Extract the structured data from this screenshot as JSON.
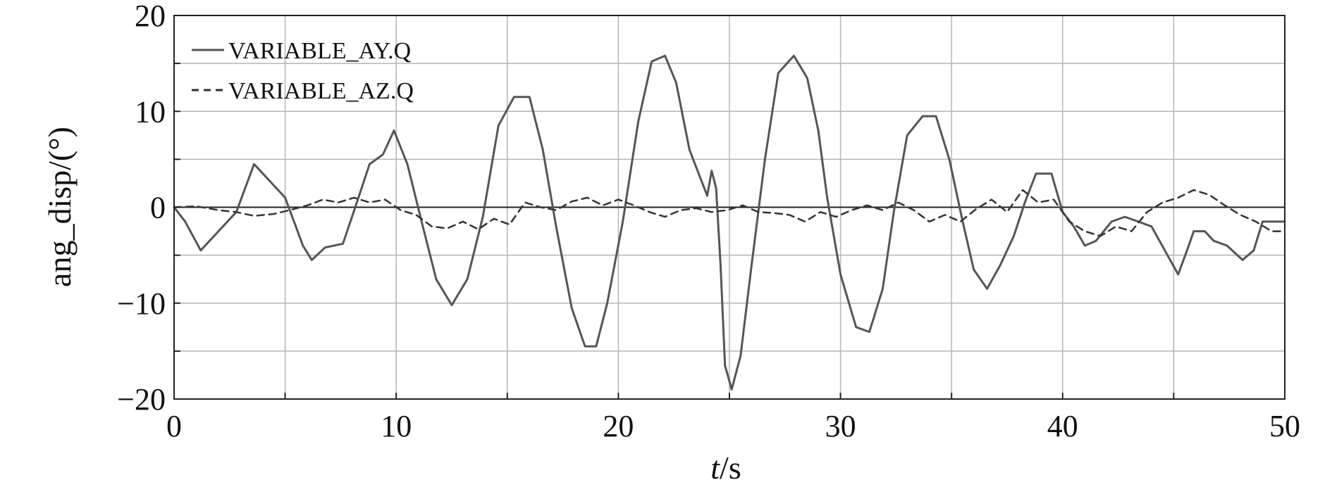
{
  "chart_data": {
    "type": "line",
    "title": "",
    "xlabel_italic": "t",
    "xlabel_unit": "/s",
    "ylabel": "ang_disp/(°)",
    "xlim": [
      0,
      50
    ],
    "ylim": [
      -20,
      20
    ],
    "xticks": [
      0,
      10,
      20,
      30,
      40,
      50
    ],
    "yticks": [
      20,
      10,
      0,
      -10,
      -20
    ],
    "ytick_labels": [
      "20",
      "10",
      "0",
      "−10",
      "−20"
    ],
    "xgrid_step": 5,
    "ygrid_step": 5,
    "grid": true,
    "zero_line": true,
    "legend_position": "top-left",
    "series": [
      {
        "name": "VARIABLE_AY.Q",
        "style": "solid",
        "color": "#555555",
        "x": [
          0,
          0.5,
          1.2,
          2,
          2.8,
          3.6,
          4.2,
          5,
          5.8,
          6.2,
          6.8,
          7.6,
          8.3,
          8.8,
          9.4,
          9.9,
          10.5,
          11.2,
          11.8,
          12.5,
          13.2,
          13.9,
          14.6,
          15.3,
          16,
          16.6,
          17.2,
          17.9,
          18.5,
          19,
          19.5,
          20.2,
          20.9,
          21.5,
          22.1,
          22.6,
          23.2,
          23.7,
          24,
          24.2,
          24.4,
          24.6,
          24.8,
          25.1,
          25.5,
          26,
          26.6,
          27.2,
          27.9,
          28.5,
          29,
          29.4,
          30,
          30.7,
          31.3,
          31.9,
          32.4,
          33,
          33.7,
          34.3,
          34.9,
          35.5,
          36,
          36.6,
          37.2,
          37.8,
          38.3,
          38.8,
          39.5,
          40,
          40.5,
          41,
          41.5,
          42.2,
          42.8,
          43.4,
          44,
          44.6,
          45.2,
          45.6,
          45.9,
          46.4,
          46.8,
          47.4,
          48.1,
          48.6,
          49,
          49.5,
          50
        ],
        "values": [
          0,
          -1.5,
          -4.5,
          -2.5,
          -0.5,
          4.5,
          3,
          1,
          -4,
          -5.5,
          -4.2,
          -3.8,
          1,
          4.5,
          5.5,
          8,
          4.5,
          -2,
          -7.5,
          -10.2,
          -7.5,
          -1,
          8.5,
          11.5,
          11.5,
          6,
          -2,
          -10.5,
          -14.5,
          -14.5,
          -10,
          -1.5,
          9,
          15.2,
          15.8,
          13,
          6,
          3,
          1.2,
          3.8,
          2,
          -6,
          -16.5,
          -19,
          -15.5,
          -6,
          5,
          14,
          15.8,
          13.5,
          8,
          1,
          -7,
          -12.5,
          -13,
          -8.5,
          -0.5,
          7.5,
          9.5,
          9.5,
          5,
          -1.5,
          -6.5,
          -8.5,
          -6,
          -3,
          0.5,
          3.5,
          3.5,
          -0.5,
          -2,
          -4,
          -3.5,
          -1.5,
          -1,
          -1.5,
          -2,
          -4.5,
          -7,
          -4.5,
          -2.5,
          -2.5,
          -3.5,
          -4,
          -5.5,
          -4.5,
          -1.5,
          -1.5,
          -1.5
        ]
      },
      {
        "name": "VARIABLE_AZ.Q",
        "style": "dashed",
        "color": "#333333",
        "x": [
          0,
          1,
          2,
          2.8,
          3.6,
          4.5,
          5.2,
          6,
          6.7,
          7.4,
          8.1,
          8.8,
          9.5,
          10.2,
          10.9,
          11.6,
          12.3,
          13,
          13.7,
          14.4,
          15.1,
          15.8,
          16.5,
          17.2,
          17.9,
          18.6,
          19.3,
          20,
          20.7,
          21.4,
          22.1,
          22.8,
          23.5,
          24.2,
          24.9,
          25.6,
          26.3,
          27,
          27.7,
          28.4,
          29.1,
          29.8,
          30.5,
          31.2,
          31.9,
          32.6,
          33.3,
          34,
          34.7,
          35.4,
          36.1,
          36.8,
          37.5,
          38.2,
          38.9,
          39.6,
          40.3,
          41,
          41.7,
          42.4,
          43.1,
          43.8,
          44.5,
          45.2,
          45.9,
          46.6,
          47.3,
          48,
          48.7,
          49.4,
          50
        ],
        "values": [
          0,
          0.1,
          -0.3,
          -0.5,
          -0.9,
          -0.7,
          -0.3,
          0.2,
          0.8,
          0.5,
          1,
          0.5,
          0.8,
          -0.3,
          -0.8,
          -2,
          -2.2,
          -1.5,
          -2.3,
          -1.2,
          -1.8,
          0.5,
          0,
          -0.3,
          0.6,
          1,
          0.2,
          0.8,
          0.2,
          -0.5,
          -1,
          -0.3,
          -0.1,
          -0.5,
          -0.3,
          0.2,
          -0.5,
          -0.6,
          -0.8,
          -1.5,
          -0.5,
          -1,
          -0.3,
          0.2,
          -0.3,
          0.5,
          -0.3,
          -1.5,
          -0.8,
          -1.5,
          -0.2,
          0.8,
          -0.5,
          1.8,
          0.5,
          0.8,
          -1.5,
          -2.5,
          -3,
          -2,
          -2.5,
          -0.5,
          0.5,
          1,
          1.8,
          1.3,
          0.2,
          -0.8,
          -1.5,
          -2.5,
          -2.5
        ]
      }
    ]
  }
}
